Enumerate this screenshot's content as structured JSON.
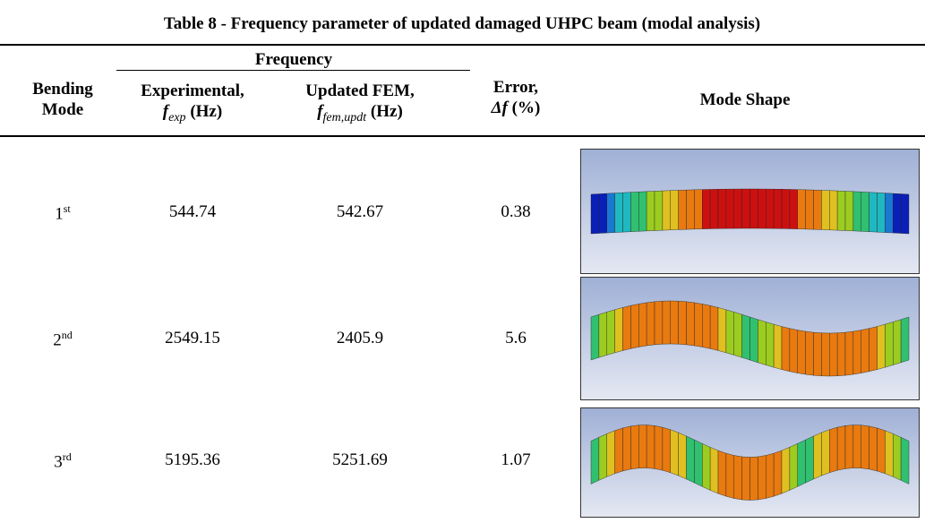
{
  "caption": "Table 8 - Frequency parameter of updated damaged UHPC beam (modal analysis)",
  "table": {
    "header": {
      "mode": [
        "Bending",
        "Mode"
      ],
      "frequency": "Frequency",
      "experimental": {
        "line1": "Experimental,",
        "symbol": "f",
        "subscript": "exp",
        "unit": "(Hz)"
      },
      "updated": {
        "line1": "Updated FEM,",
        "symbol": "f",
        "subscript": "fem,updt",
        "unit": "(Hz)"
      },
      "error": {
        "line1": "Error,",
        "symbol": "Δf",
        "unit": "(%)"
      },
      "shape": "Mode Shape"
    },
    "rows": [
      {
        "mode": "1",
        "suffix": "st",
        "experimental": "544.74",
        "updated": "542.67",
        "error": "0.38"
      },
      {
        "mode": "2",
        "suffix": "nd",
        "experimental": "2549.15",
        "updated": "2405.9",
        "error": "5.6"
      },
      {
        "mode": "3",
        "suffix": "rd",
        "experimental": "5195.36",
        "updated": "5251.69",
        "error": "1.07"
      }
    ]
  }
}
